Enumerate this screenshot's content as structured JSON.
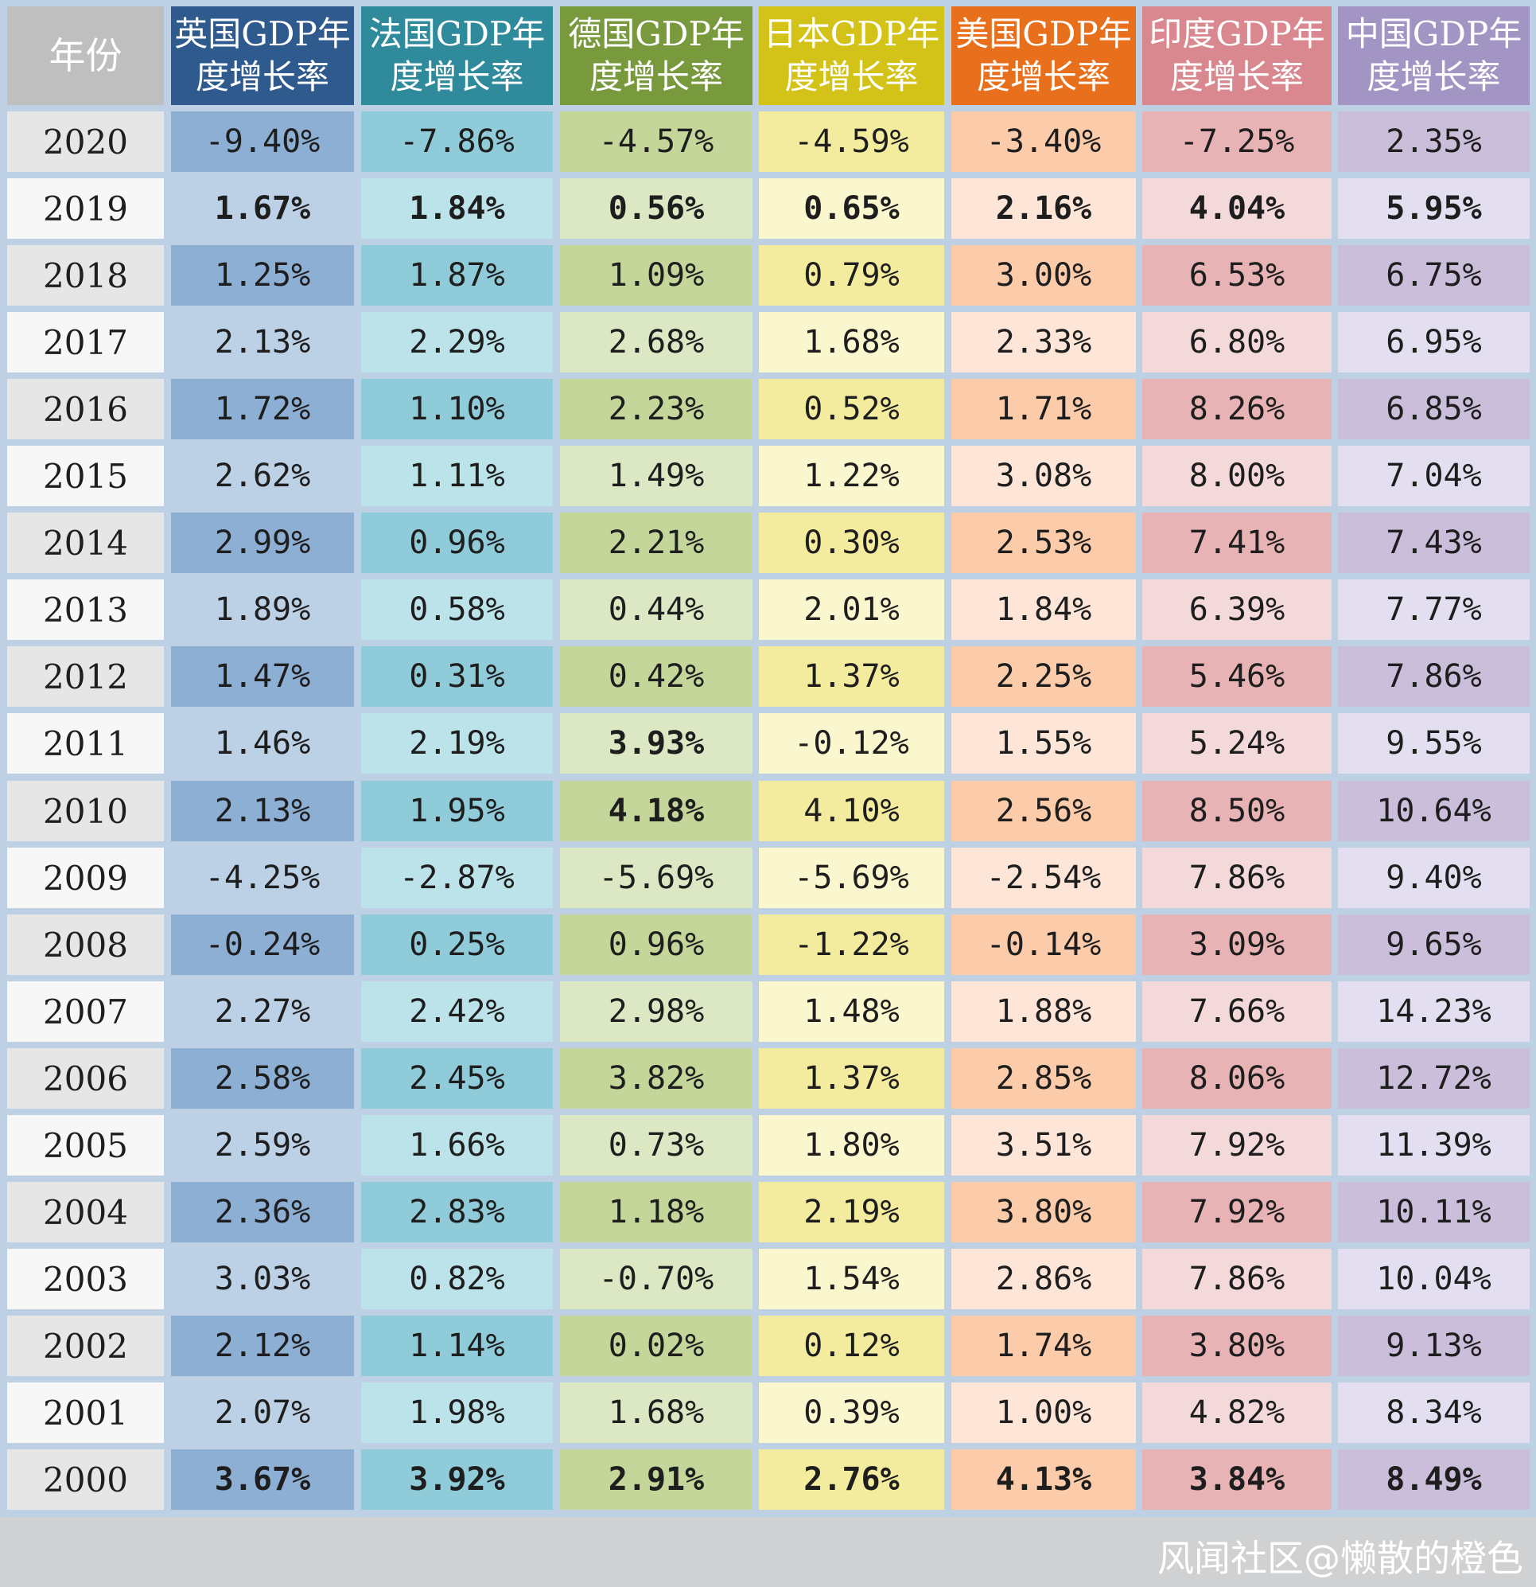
{
  "chart_data": {
    "type": "table",
    "year_header": "年份",
    "columns": [
      {
        "name": "英国GDP年度增长率",
        "header_color": "#2e5a8e",
        "fill_dark": "#8eafd4",
        "fill_light": "#bcd0e6"
      },
      {
        "name": "法国GDP年度增长率",
        "header_color": "#2f8b9c",
        "fill_dark": "#8fcbd9",
        "fill_light": "#bce2ea"
      },
      {
        "name": "德国GDP年度增长率",
        "header_color": "#789a3c",
        "fill_dark": "#c4d69a",
        "fill_light": "#dce7c4"
      },
      {
        "name": "日本GDP年度增长率",
        "header_color": "#d3c318",
        "fill_dark": "#f3ec9e",
        "fill_light": "#faf6cd"
      },
      {
        "name": "美国GDP年度增长率",
        "header_color": "#e8701c",
        "fill_dark": "#fcccaa",
        "fill_light": "#fde6d8"
      },
      {
        "name": "印度GDP年度增长率",
        "header_color": "#d8888e",
        "fill_dark": "#e8b3b5",
        "fill_light": "#f3d9da"
      },
      {
        "name": "中国GDP年度增长率",
        "header_color": "#a294c3",
        "fill_dark": "#cbbedb",
        "fill_light": "#e3def0"
      }
    ],
    "rows": [
      {
        "year": "2020",
        "values": [
          "-9.40%",
          "-7.86%",
          "-4.57%",
          "-4.59%",
          "-3.40%",
          "-7.25%",
          "2.35%"
        ]
      },
      {
        "year": "2019",
        "values": [
          "1.67%",
          "1.84%",
          "0.56%",
          "0.65%",
          "2.16%",
          "4.04%",
          "5.95%"
        ]
      },
      {
        "year": "2018",
        "values": [
          "1.25%",
          "1.87%",
          "1.09%",
          "0.79%",
          "3.00%",
          "6.53%",
          "6.75%"
        ]
      },
      {
        "year": "2017",
        "values": [
          "2.13%",
          "2.29%",
          "2.68%",
          "1.68%",
          "2.33%",
          "6.80%",
          "6.95%"
        ]
      },
      {
        "year": "2016",
        "values": [
          "1.72%",
          "1.10%",
          "2.23%",
          "0.52%",
          "1.71%",
          "8.26%",
          "6.85%"
        ]
      },
      {
        "year": "2015",
        "values": [
          "2.62%",
          "1.11%",
          "1.49%",
          "1.22%",
          "3.08%",
          "8.00%",
          "7.04%"
        ]
      },
      {
        "year": "2014",
        "values": [
          "2.99%",
          "0.96%",
          "2.21%",
          "0.30%",
          "2.53%",
          "7.41%",
          "7.43%"
        ]
      },
      {
        "year": "2013",
        "values": [
          "1.89%",
          "0.58%",
          "0.44%",
          "2.01%",
          "1.84%",
          "6.39%",
          "7.77%"
        ]
      },
      {
        "year": "2012",
        "values": [
          "1.47%",
          "0.31%",
          "0.42%",
          "1.37%",
          "2.25%",
          "5.46%",
          "7.86%"
        ]
      },
      {
        "year": "2011",
        "values": [
          "1.46%",
          "2.19%",
          "3.93%",
          "-0.12%",
          "1.55%",
          "5.24%",
          "9.55%"
        ]
      },
      {
        "year": "2010",
        "values": [
          "2.13%",
          "1.95%",
          "4.18%",
          "4.10%",
          "2.56%",
          "8.50%",
          "10.64%"
        ]
      },
      {
        "year": "2009",
        "values": [
          "-4.25%",
          "-2.87%",
          "-5.69%",
          "-5.69%",
          "-2.54%",
          "7.86%",
          "9.40%"
        ]
      },
      {
        "year": "2008",
        "values": [
          "-0.24%",
          "0.25%",
          "0.96%",
          "-1.22%",
          "-0.14%",
          "3.09%",
          "9.65%"
        ]
      },
      {
        "year": "2007",
        "values": [
          "2.27%",
          "2.42%",
          "2.98%",
          "1.48%",
          "1.88%",
          "7.66%",
          "14.23%"
        ]
      },
      {
        "year": "2006",
        "values": [
          "2.58%",
          "2.45%",
          "3.82%",
          "1.37%",
          "2.85%",
          "8.06%",
          "12.72%"
        ]
      },
      {
        "year": "2005",
        "values": [
          "2.59%",
          "1.66%",
          "0.73%",
          "1.80%",
          "3.51%",
          "7.92%",
          "11.39%"
        ]
      },
      {
        "year": "2004",
        "values": [
          "2.36%",
          "2.83%",
          "1.18%",
          "2.19%",
          "3.80%",
          "7.92%",
          "10.11%"
        ]
      },
      {
        "year": "2003",
        "values": [
          "3.03%",
          "0.82%",
          "-0.70%",
          "1.54%",
          "2.86%",
          "7.86%",
          "10.04%"
        ]
      },
      {
        "year": "2002",
        "values": [
          "2.12%",
          "1.14%",
          "0.02%",
          "0.12%",
          "1.74%",
          "3.80%",
          "9.13%"
        ]
      },
      {
        "year": "2001",
        "values": [
          "2.07%",
          "1.98%",
          "1.68%",
          "0.39%",
          "1.00%",
          "4.82%",
          "8.34%"
        ]
      },
      {
        "year": "2000",
        "values": [
          "3.67%",
          "3.92%",
          "2.91%",
          "2.76%",
          "4.13%",
          "3.84%",
          "8.49%"
        ]
      }
    ],
    "bold_rows": [
      "2019",
      "2000"
    ],
    "bold_cells": [
      {
        "year": "2011",
        "column": "德国GDP年度增长率"
      },
      {
        "year": "2010",
        "column": "德国GDP年度增长率"
      }
    ],
    "colors": {
      "year_header_bg": "#bfbfbf",
      "year_cell_dark": "#e6e6e6",
      "year_cell_light": "#f7f7f7",
      "grid_bg": "#bdd0e4",
      "footer_bg": "#cfd1d3"
    }
  },
  "watermark": "风闻社区@懒散的橙色"
}
